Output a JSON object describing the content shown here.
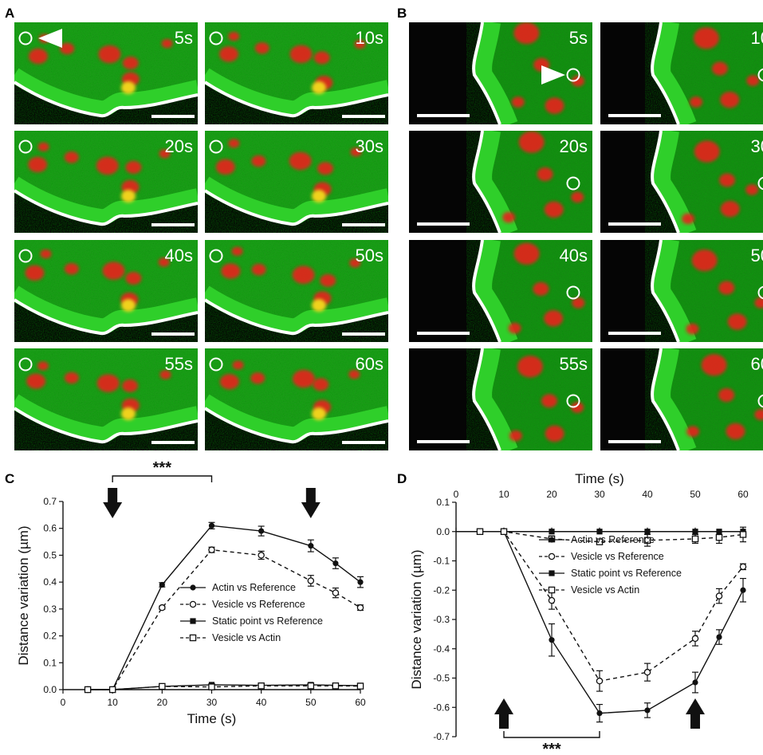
{
  "panel_letters": {
    "a": "A",
    "b": "B",
    "c": "C",
    "d": "D"
  },
  "time_labels": [
    "5s",
    "10s",
    "20s",
    "30s",
    "40s",
    "50s",
    "55s",
    "60s"
  ],
  "colors": {
    "green": "#2fcf2a",
    "red": "#e8221e",
    "yellow": "#f0d21e",
    "background": "#050505",
    "outline": "#ffffff"
  },
  "chart_data": [
    {
      "panel": "C",
      "type": "line",
      "xlabel": "Time (s)",
      "ylabel": "Distance variation (µm)",
      "xlim": [
        0,
        60
      ],
      "ylim": [
        0,
        0.7
      ],
      "xticks": [
        0,
        10,
        20,
        30,
        40,
        50,
        60
      ],
      "yticks": [
        0.0,
        0.1,
        0.2,
        0.3,
        0.4,
        0.5,
        0.6,
        0.7
      ],
      "x_axis_position": "bottom",
      "legend_position": "center-right",
      "grid": false,
      "significance": "***",
      "significance_bracket_x": [
        10,
        30
      ],
      "arrows_at_x": [
        10,
        50
      ],
      "arrow_direction": "down",
      "series": [
        {
          "name": "Actin vs Reference",
          "marker": "filled-circle",
          "line": "solid",
          "x": [
            5,
            10,
            20,
            30,
            40,
            50,
            55,
            60
          ],
          "y": [
            0.0,
            0.0,
            0.39,
            0.61,
            0.59,
            0.535,
            0.47,
            0.4
          ],
          "err": [
            0,
            0,
            0.008,
            0.012,
            0.018,
            0.022,
            0.02,
            0.02
          ]
        },
        {
          "name": "Vesicle vs Reference",
          "marker": "open-circle",
          "line": "dashed",
          "x": [
            5,
            10,
            20,
            30,
            40,
            50,
            55,
            60
          ],
          "y": [
            0.0,
            0.0,
            0.305,
            0.52,
            0.5,
            0.405,
            0.36,
            0.305
          ],
          "err": [
            0,
            0,
            0.006,
            0.01,
            0.015,
            0.02,
            0.018,
            0.01
          ]
        },
        {
          "name": "Static point vs Reference",
          "marker": "filled-square",
          "line": "solid",
          "x": [
            5,
            10,
            20,
            30,
            40,
            50,
            55,
            60
          ],
          "y": [
            0.0,
            0.0,
            0.012,
            0.018,
            0.016,
            0.018,
            0.016,
            0.015
          ],
          "err": [
            0,
            0,
            0.003,
            0.004,
            0.003,
            0.004,
            0.003,
            0.003
          ]
        },
        {
          "name": "Vesicle vs Actin",
          "marker": "open-square",
          "line": "dashed",
          "x": [
            5,
            10,
            20,
            30,
            40,
            50,
            55,
            60
          ],
          "y": [
            0.0,
            0.0,
            0.012,
            0.01,
            0.014,
            0.014,
            0.014,
            0.013
          ],
          "err": [
            0,
            0,
            0.003,
            0.003,
            0.003,
            0.003,
            0.003,
            0.003
          ]
        }
      ]
    },
    {
      "panel": "D",
      "type": "line",
      "xlabel": "Time (s)",
      "ylabel": "Distance variation (µm)",
      "xlim": [
        0,
        60
      ],
      "ylim": [
        -0.7,
        0.1
      ],
      "xticks": [
        0,
        10,
        20,
        30,
        40,
        50,
        60
      ],
      "yticks": [
        0.1,
        0.0,
        -0.1,
        -0.2,
        -0.3,
        -0.4,
        -0.5,
        -0.6,
        -0.7
      ],
      "x_axis_position": "top",
      "legend_position": "upper-center",
      "grid": false,
      "significance": "***",
      "significance_bracket_x": [
        10,
        30
      ],
      "arrows_at_x": [
        10,
        50
      ],
      "arrow_direction": "up",
      "series": [
        {
          "name": "Actin vs Reference",
          "marker": "filled-circle",
          "line": "solid",
          "x": [
            5,
            10,
            20,
            30,
            40,
            50,
            55,
            60
          ],
          "y": [
            0.0,
            0.0,
            -0.37,
            -0.62,
            -0.61,
            -0.515,
            -0.36,
            -0.2
          ],
          "err": [
            0,
            0,
            0.055,
            0.03,
            0.025,
            0.035,
            0.025,
            0.04
          ]
        },
        {
          "name": "Vesicle vs Reference",
          "marker": "open-circle",
          "line": "dashed",
          "x": [
            5,
            10,
            20,
            30,
            40,
            50,
            55,
            60
          ],
          "y": [
            0.0,
            0.0,
            -0.235,
            -0.51,
            -0.48,
            -0.365,
            -0.22,
            -0.12
          ],
          "err": [
            0,
            0,
            0.03,
            0.035,
            0.03,
            0.025,
            0.025,
            0.01
          ]
        },
        {
          "name": "Static point vs Reference",
          "marker": "filled-square",
          "line": "solid",
          "x": [
            5,
            10,
            20,
            30,
            40,
            50,
            55,
            60
          ],
          "y": [
            0.0,
            0.0,
            0.0,
            0.0,
            0.0,
            0.0,
            0.0,
            0.0
          ],
          "err": [
            0,
            0,
            0,
            0,
            0,
            0,
            0,
            0
          ]
        },
        {
          "name": "Vesicle vs Actin",
          "marker": "open-square",
          "line": "dashed",
          "x": [
            5,
            10,
            20,
            30,
            40,
            50,
            55,
            60
          ],
          "y": [
            0.0,
            0.0,
            -0.025,
            -0.035,
            -0.03,
            -0.025,
            -0.02,
            -0.01
          ],
          "err": [
            0,
            0,
            0.01,
            0.008,
            0.02,
            0.015,
            0.02,
            0.025
          ]
        }
      ]
    }
  ]
}
